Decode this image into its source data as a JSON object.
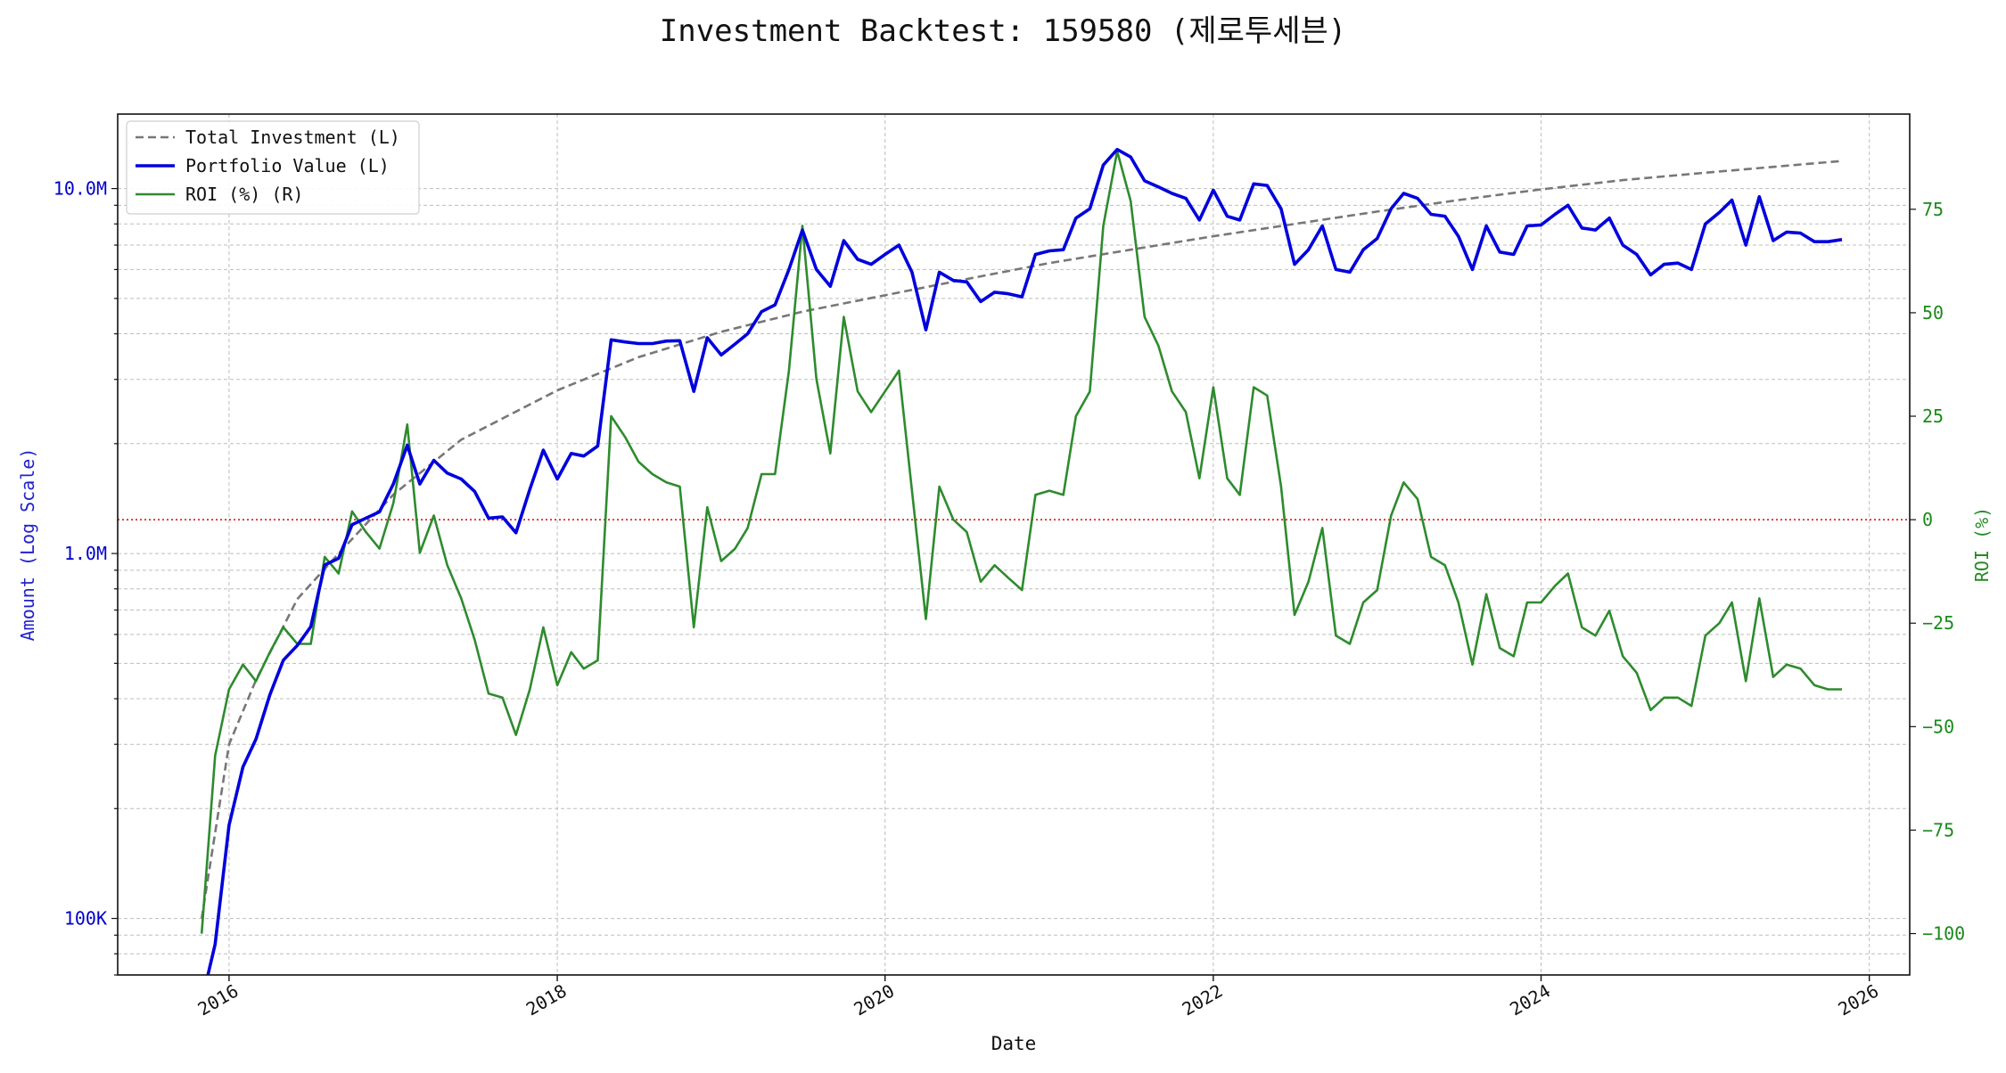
{
  "chart_data": {
    "type": "line",
    "title": "Investment Backtest: 159580 (제로투세븐)",
    "xlabel": "Date",
    "ylabel_left": "Amount (Log Scale)",
    "ylabel_right": "ROI (%)",
    "x_range": [
      "2015-04-28",
      "2026-04-01"
    ],
    "ylim_left": [
      70000,
      16000000
    ],
    "ylim_right": [
      -110,
      98
    ],
    "y_scale_left": "log",
    "grid": true,
    "legend_position": "top-left",
    "reference_line": {
      "axis": "right",
      "value": 0,
      "color": "#dd0000",
      "style": "dotted"
    },
    "x_ticks": [
      {
        "date": "2016-01-01",
        "label": "2016"
      },
      {
        "date": "2018-01-01",
        "label": "2018"
      },
      {
        "date": "2020-01-01",
        "label": "2020"
      },
      {
        "date": "2022-01-01",
        "label": "2022"
      },
      {
        "date": "2024-01-01",
        "label": "2024"
      },
      {
        "date": "2026-01-01",
        "label": "2026"
      }
    ],
    "y_ticks_left": [
      {
        "value": 100000,
        "label": "100K"
      },
      {
        "value": 1000000,
        "label": "1.0M"
      },
      {
        "value": 10000000,
        "label": "10.0M"
      }
    ],
    "y_ticks_right": [
      {
        "value": -100,
        "label": "−100"
      },
      {
        "value": -75,
        "label": "−75"
      },
      {
        "value": -50,
        "label": "−50"
      },
      {
        "value": -25,
        "label": "−25"
      },
      {
        "value": 0,
        "label": "0"
      },
      {
        "value": 25,
        "label": "25"
      },
      {
        "value": 50,
        "label": "50"
      },
      {
        "value": 75,
        "label": "75"
      }
    ],
    "series": [
      {
        "name": "Total Investment (L)",
        "axis": "left",
        "color": "#777777",
        "style": "dashed",
        "x": [
          "2015-11-01",
          "2016-01-01",
          "2016-03-01",
          "2016-06-01",
          "2016-09-01",
          "2017-01-01",
          "2017-06-01",
          "2018-01-01",
          "2018-07-01",
          "2019-01-01",
          "2019-07-01",
          "2020-01-01",
          "2020-07-01",
          "2021-01-01",
          "2021-07-01",
          "2022-01-01",
          "2022-07-01",
          "2023-01-01",
          "2023-07-01",
          "2024-01-01",
          "2024-07-01",
          "2025-01-01",
          "2025-11-01"
        ],
        "values": [
          100000,
          300000,
          450000,
          750000,
          1000000,
          1450000,
          2050000,
          2800000,
          3450000,
          4050000,
          4600000,
          5100000,
          5650000,
          6250000,
          6800000,
          7400000,
          8000000,
          8650000,
          9300000,
          9950000,
          10550000,
          11050000,
          11900000
        ]
      },
      {
        "name": "Portfolio Value (L)",
        "axis": "left",
        "color": "#0000dd",
        "style": "solid",
        "x": [
          "2015-11-15",
          "2015-12-01",
          "2016-01-01",
          "2016-02-01",
          "2016-03-01",
          "2016-04-01",
          "2016-05-01",
          "2016-06-01",
          "2016-07-01",
          "2016-08-01",
          "2016-09-01",
          "2016-10-01",
          "2016-11-01",
          "2016-12-01",
          "2017-01-01",
          "2017-02-01",
          "2017-03-01",
          "2017-04-01",
          "2017-05-01",
          "2017-06-01",
          "2017-07-01",
          "2017-08-01",
          "2017-09-01",
          "2017-10-01",
          "2017-11-01",
          "2017-12-01",
          "2018-01-01",
          "2018-02-01",
          "2018-03-01",
          "2018-04-01",
          "2018-05-01",
          "2018-06-01",
          "2018-07-01",
          "2018-08-01",
          "2018-09-01",
          "2018-10-01",
          "2018-11-01",
          "2018-12-01",
          "2019-01-01",
          "2019-02-01",
          "2019-03-01",
          "2019-04-01",
          "2019-05-01",
          "2019-06-01",
          "2019-07-01",
          "2019-08-01",
          "2019-09-01",
          "2019-10-01",
          "2019-11-01",
          "2019-12-01",
          "2020-01-01",
          "2020-02-01",
          "2020-03-01",
          "2020-04-01",
          "2020-05-01",
          "2020-06-01",
          "2020-07-01",
          "2020-08-01",
          "2020-09-01",
          "2020-10-01",
          "2020-11-01",
          "2020-12-01",
          "2021-01-01",
          "2021-02-01",
          "2021-03-01",
          "2021-04-01",
          "2021-05-01",
          "2021-06-01",
          "2021-07-01",
          "2021-08-01",
          "2021-09-01",
          "2021-10-01",
          "2021-11-01",
          "2021-12-01",
          "2022-01-01",
          "2022-02-01",
          "2022-03-01",
          "2022-04-01",
          "2022-05-01",
          "2022-06-01",
          "2022-07-01",
          "2022-08-01",
          "2022-09-01",
          "2022-10-01",
          "2022-11-01",
          "2022-12-01",
          "2023-01-01",
          "2023-02-01",
          "2023-03-01",
          "2023-04-01",
          "2023-05-01",
          "2023-06-01",
          "2023-07-01",
          "2023-08-01",
          "2023-09-01",
          "2023-10-01",
          "2023-11-01",
          "2023-12-01",
          "2024-01-01",
          "2024-02-01",
          "2024-03-01",
          "2024-04-01",
          "2024-05-01",
          "2024-06-01",
          "2024-07-01",
          "2024-08-01",
          "2024-09-01",
          "2024-10-01",
          "2024-11-01",
          "2024-12-01",
          "2025-01-01",
          "2025-02-01",
          "2025-03-01",
          "2025-04-01",
          "2025-05-01",
          "2025-06-01",
          "2025-07-01",
          "2025-08-01",
          "2025-09-01",
          "2025-10-01",
          "2025-11-01"
        ],
        "values": [
          60000,
          85000,
          180000,
          260000,
          310000,
          410000,
          510000,
          560000,
          630000,
          930000,
          970000,
          1200000,
          1250000,
          1300000,
          1550000,
          1980000,
          1550000,
          1800000,
          1660000,
          1600000,
          1480000,
          1250000,
          1260000,
          1140000,
          1500000,
          1920000,
          1600000,
          1880000,
          1850000,
          1970000,
          3850000,
          3800000,
          3760000,
          3760000,
          3820000,
          3830000,
          2780000,
          3900000,
          3500000,
          3750000,
          4000000,
          4600000,
          4800000,
          6000000,
          7700000,
          6000000,
          5400000,
          7200000,
          6400000,
          6200000,
          6600000,
          7000000,
          5900000,
          4100000,
          5900000,
          5600000,
          5550000,
          4900000,
          5200000,
          5150000,
          5050000,
          6600000,
          6750000,
          6800000,
          8300000,
          8800000,
          11600000,
          12800000,
          12200000,
          10500000,
          10100000,
          9700000,
          9400000,
          8200000,
          9900000,
          8400000,
          8200000,
          10300000,
          10200000,
          8800000,
          6200000,
          6800000,
          7900000,
          6000000,
          5900000,
          6800000,
          7300000,
          8800000,
          9700000,
          9400000,
          8500000,
          8400000,
          7400000,
          6000000,
          7900000,
          6700000,
          6600000,
          7900000,
          7950000,
          8500000,
          9000000,
          7800000,
          7700000,
          8300000,
          7000000,
          6600000,
          5800000,
          6200000,
          6250000,
          6000000,
          8000000,
          8600000,
          9300000,
          7000000,
          9500000,
          7200000,
          7600000,
          7550000,
          7150000,
          7150000,
          7250000
        ]
      },
      {
        "name": "ROI (%) (R)",
        "axis": "right",
        "color": "#2e8b2e",
        "style": "solid",
        "x": [
          "2015-11-01",
          "2015-12-01",
          "2016-01-01",
          "2016-02-01",
          "2016-03-01",
          "2016-04-01",
          "2016-05-01",
          "2016-06-01",
          "2016-07-01",
          "2016-08-01",
          "2016-09-01",
          "2016-10-01",
          "2016-11-01",
          "2016-12-01",
          "2017-01-01",
          "2017-02-01",
          "2017-03-01",
          "2017-04-01",
          "2017-05-01",
          "2017-06-01",
          "2017-07-01",
          "2017-08-01",
          "2017-09-01",
          "2017-10-01",
          "2017-11-01",
          "2017-12-01",
          "2018-01-01",
          "2018-02-01",
          "2018-03-01",
          "2018-04-01",
          "2018-05-01",
          "2018-06-01",
          "2018-07-01",
          "2018-08-01",
          "2018-09-01",
          "2018-10-01",
          "2018-11-01",
          "2018-12-01",
          "2019-01-01",
          "2019-02-01",
          "2019-03-01",
          "2019-04-01",
          "2019-05-01",
          "2019-06-01",
          "2019-07-01",
          "2019-08-01",
          "2019-09-01",
          "2019-10-01",
          "2019-11-01",
          "2019-12-01",
          "2020-01-01",
          "2020-02-01",
          "2020-03-01",
          "2020-04-01",
          "2020-05-01",
          "2020-06-01",
          "2020-07-01",
          "2020-08-01",
          "2020-09-01",
          "2020-10-01",
          "2020-11-01",
          "2020-12-01",
          "2021-01-01",
          "2021-02-01",
          "2021-03-01",
          "2021-04-01",
          "2021-05-01",
          "2021-06-01",
          "2021-07-01",
          "2021-08-01",
          "2021-09-01",
          "2021-10-01",
          "2021-11-01",
          "2021-12-01",
          "2022-01-01",
          "2022-02-01",
          "2022-03-01",
          "2022-04-01",
          "2022-05-01",
          "2022-06-01",
          "2022-07-01",
          "2022-08-01",
          "2022-09-01",
          "2022-10-01",
          "2022-11-01",
          "2022-12-01",
          "2023-01-01",
          "2023-02-01",
          "2023-03-01",
          "2023-04-01",
          "2023-05-01",
          "2023-06-01",
          "2023-07-01",
          "2023-08-01",
          "2023-09-01",
          "2023-10-01",
          "2023-11-01",
          "2023-12-01",
          "2024-01-01",
          "2024-02-01",
          "2024-03-01",
          "2024-04-01",
          "2024-05-01",
          "2024-06-01",
          "2024-07-01",
          "2024-08-01",
          "2024-09-01",
          "2024-10-01",
          "2024-11-01",
          "2024-12-01",
          "2025-01-01",
          "2025-02-01",
          "2025-03-01",
          "2025-04-01",
          "2025-05-01",
          "2025-06-01",
          "2025-07-01",
          "2025-08-01",
          "2025-09-01",
          "2025-10-01",
          "2025-11-01"
        ],
        "values": [
          -100,
          -57,
          -41,
          -35,
          -39,
          -32,
          -26,
          -30,
          -30,
          -9,
          -13,
          2,
          -3,
          -7,
          4,
          23,
          -8,
          1,
          -11,
          -19,
          -29,
          -42,
          -43,
          -52,
          -41,
          -26,
          -40,
          -32,
          -36,
          -34,
          25,
          20,
          14,
          11,
          9,
          8,
          -26,
          3,
          -10,
          -7,
          -2,
          11,
          11,
          36,
          71,
          34,
          16,
          49,
          31,
          26,
          31,
          36,
          7,
          -24,
          8,
          0,
          -3,
          -15,
          -11,
          -14,
          -17,
          6,
          7,
          6,
          25,
          31,
          71,
          89,
          77,
          49,
          42,
          31,
          26,
          10,
          32,
          10,
          6,
          32,
          30,
          8,
          -23,
          -15,
          -2,
          -28,
          -30,
          -20,
          -17,
          1,
          9,
          5,
          -9,
          -11,
          -20,
          -35,
          -18,
          -31,
          -33,
          -20,
          -20,
          -16,
          -13,
          -26,
          -28,
          -22,
          -33,
          -37,
          -46,
          -43,
          -43,
          -45,
          -28,
          -25,
          -20,
          -39,
          -19,
          -38,
          -35,
          -36,
          -40,
          -41,
          -41
        ]
      }
    ]
  }
}
